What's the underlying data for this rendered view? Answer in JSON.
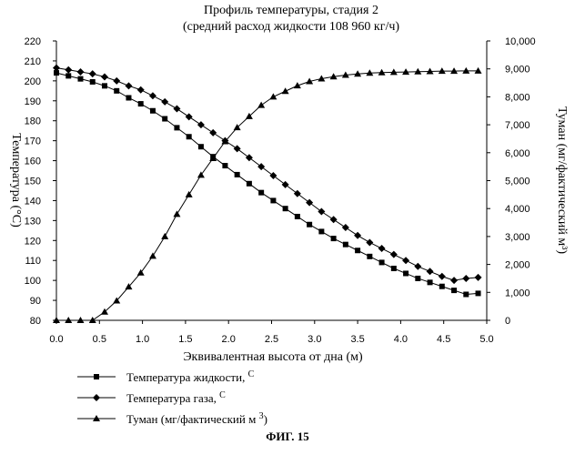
{
  "figure": {
    "caption": "ФИГ. 15"
  },
  "chart_data": {
    "type": "line",
    "title": "Профиль температуры, стадия 2",
    "subtitle": "(средний расход жидкости 108 960 кг/ч)",
    "xlabel": "Эквивалентная высота от дна (м)",
    "ylabel_left": "Температура (°C)",
    "ylabel_right": "Туман (мг/фактический м³)",
    "xlim": [
      0,
      5
    ],
    "ylim_left": [
      80,
      220
    ],
    "ylim_right": [
      0,
      10000
    ],
    "x_ticks": [
      "0.0",
      "0.5",
      "1.0",
      "1.5",
      "2.0",
      "2.5",
      "3.0",
      "3.5",
      "4.0",
      "4.5",
      "5.0"
    ],
    "y_left_ticks": [
      "80",
      "90",
      "100",
      "110",
      "120",
      "130",
      "140",
      "150",
      "160",
      "170",
      "180",
      "190",
      "200",
      "210",
      "220"
    ],
    "y_right_ticks": [
      "0",
      "1,000",
      "2,000",
      "3,000",
      "4,000",
      "5,000",
      "6,000",
      "7,000",
      "8,000",
      "9,000",
      "10,000"
    ],
    "legend_position": "bottom-left",
    "grid": false,
    "x": [
      0.0,
      0.14,
      0.28,
      0.42,
      0.56,
      0.7,
      0.84,
      0.98,
      1.12,
      1.26,
      1.4,
      1.54,
      1.68,
      1.82,
      1.96,
      2.1,
      2.24,
      2.38,
      2.52,
      2.66,
      2.8,
      2.94,
      3.08,
      3.22,
      3.36,
      3.5,
      3.64,
      3.78,
      3.92,
      4.06,
      4.2,
      4.34,
      4.48,
      4.62,
      4.76,
      4.9
    ],
    "series": [
      {
        "name": "Температура жидкости,",
        "legend_unit": "C",
        "axis": "left",
        "marker": "square",
        "values": [
          204,
          202.5,
          201,
          199.5,
          197.5,
          195,
          191.5,
          188.5,
          185,
          181,
          176.5,
          172,
          167,
          162,
          157.5,
          153,
          148.5,
          144,
          140,
          136,
          132,
          128,
          124.5,
          121,
          118,
          115,
          112,
          109,
          106,
          103.5,
          101,
          99,
          97,
          95,
          93,
          93.5
        ]
      },
      {
        "name": "Температура газа,",
        "legend_unit": "C",
        "axis": "left",
        "marker": "diamond",
        "values": [
          206.5,
          205.5,
          204.5,
          203.5,
          202,
          200,
          197.5,
          195.5,
          192.5,
          189.5,
          186,
          182,
          178,
          174,
          170,
          166,
          161.5,
          157,
          152.5,
          148,
          143.5,
          139,
          134.5,
          130.5,
          126.5,
          122.5,
          119,
          116,
          113,
          110,
          107,
          104.5,
          102,
          100,
          101,
          101.5
        ]
      },
      {
        "name": "Туман (мг/фактический м",
        "legend_unit": "3",
        "axis": "right",
        "marker": "triangle",
        "values": [
          0,
          0,
          0,
          0,
          300,
          700,
          1200,
          1700,
          2300,
          3000,
          3800,
          4500,
          5200,
          5800,
          6400,
          6900,
          7300,
          7700,
          8000,
          8200,
          8400,
          8550,
          8650,
          8720,
          8780,
          8820,
          8850,
          8870,
          8880,
          8890,
          8900,
          8910,
          8920,
          8920,
          8930,
          8930
        ]
      }
    ]
  }
}
